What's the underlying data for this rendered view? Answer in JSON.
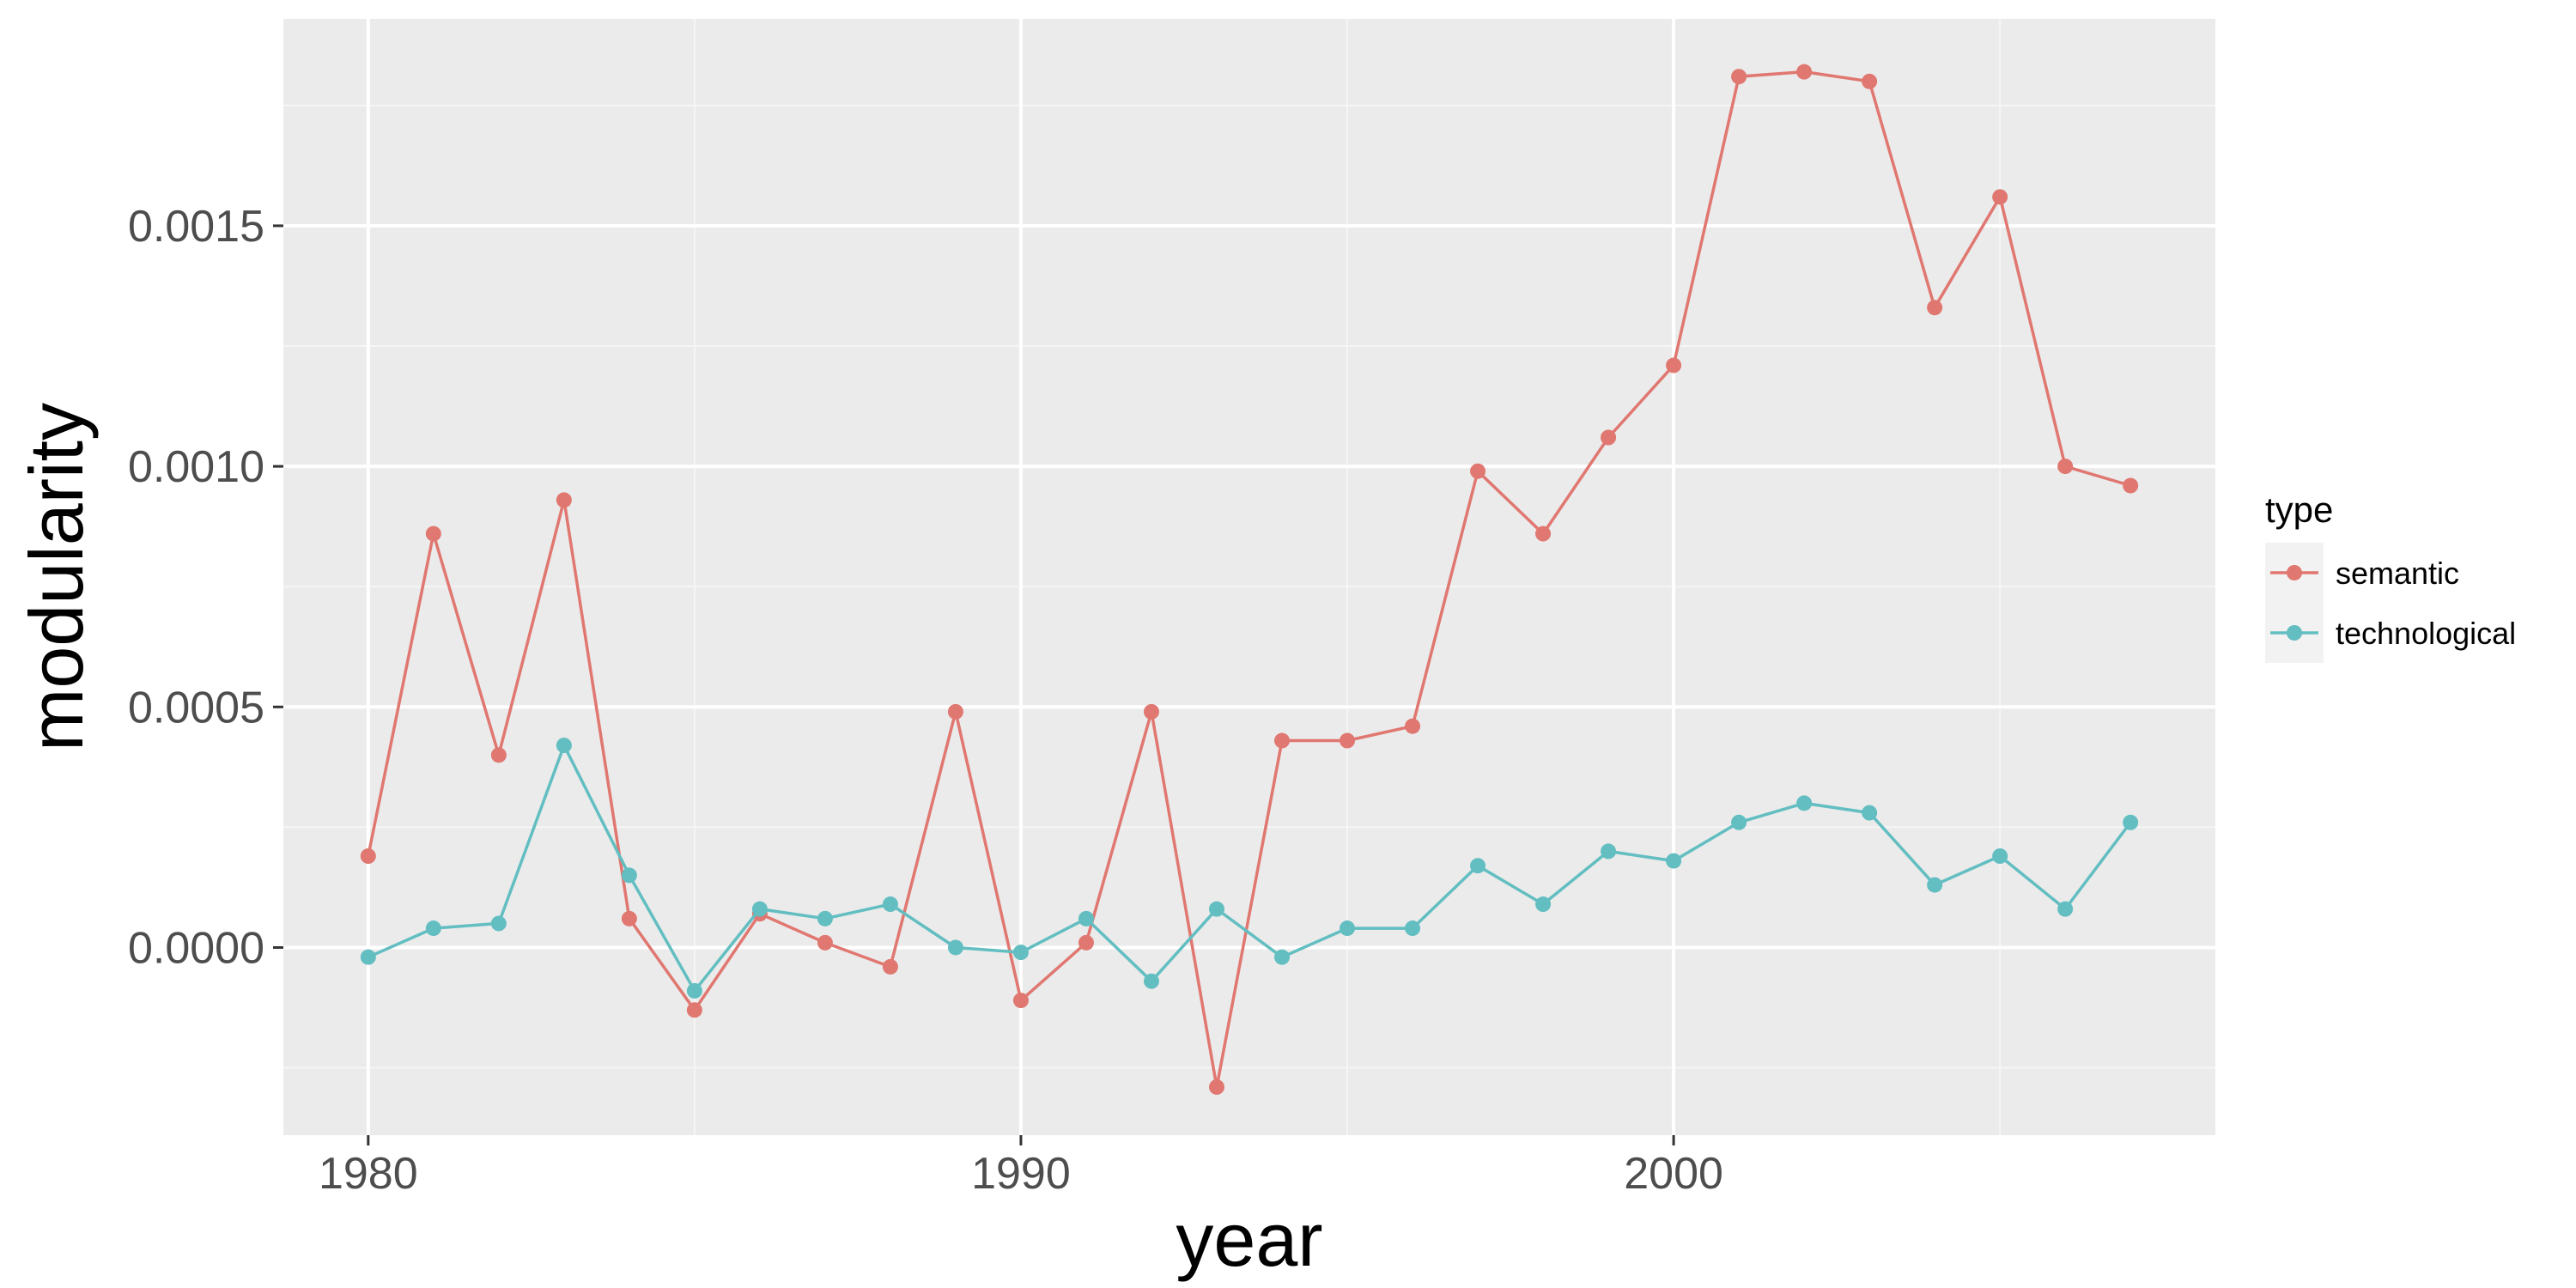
{
  "chart_data": {
    "type": "line",
    "xlabel": "year",
    "ylabel": "modularity",
    "xlim": [
      1978.7,
      2008.3
    ],
    "ylim": [
      -0.00039,
      0.00193
    ],
    "x_ticks": [
      1980,
      1990,
      2000
    ],
    "x_tick_labels": [
      "1980",
      "1990",
      "2000"
    ],
    "y_ticks": [
      0.0,
      0.0005,
      0.001,
      0.0015
    ],
    "y_tick_labels": [
      "0.0000",
      "0.0005",
      "0.0010",
      "0.0015"
    ],
    "grid": true,
    "legend": {
      "title": "type",
      "position": "right"
    },
    "x": [
      1980,
      1981,
      1982,
      1983,
      1984,
      1985,
      1986,
      1987,
      1988,
      1989,
      1990,
      1991,
      1992,
      1993,
      1994,
      1995,
      1996,
      1997,
      1998,
      1999,
      2000,
      2001,
      2002,
      2003,
      2004,
      2005,
      2006,
      2007
    ],
    "series": [
      {
        "name": "semantic",
        "color": "#E07770",
        "values": [
          0.00019,
          0.00086,
          0.0004,
          0.00093,
          6e-05,
          -0.00013,
          7e-05,
          1e-05,
          -4e-05,
          0.00049,
          -0.00011,
          1e-05,
          0.00049,
          -0.00029,
          0.00043,
          0.00043,
          0.00046,
          0.00099,
          0.00086,
          0.00106,
          0.00121,
          0.00181,
          0.00182,
          0.0018,
          0.00133,
          0.00156,
          0.001,
          0.00096
        ]
      },
      {
        "name": "technological",
        "color": "#62BEC1",
        "values": [
          -2e-05,
          4e-05,
          5e-05,
          0.00042,
          0.00015,
          -9e-05,
          8e-05,
          6e-05,
          9e-05,
          0.0,
          -1e-05,
          6e-05,
          -7e-05,
          8e-05,
          -2e-05,
          4e-05,
          4e-05,
          0.00017,
          9e-05,
          0.0002,
          0.00018,
          0.00026,
          0.0003,
          0.00028,
          0.00013,
          0.00019,
          8e-05,
          0.00026
        ]
      }
    ]
  }
}
